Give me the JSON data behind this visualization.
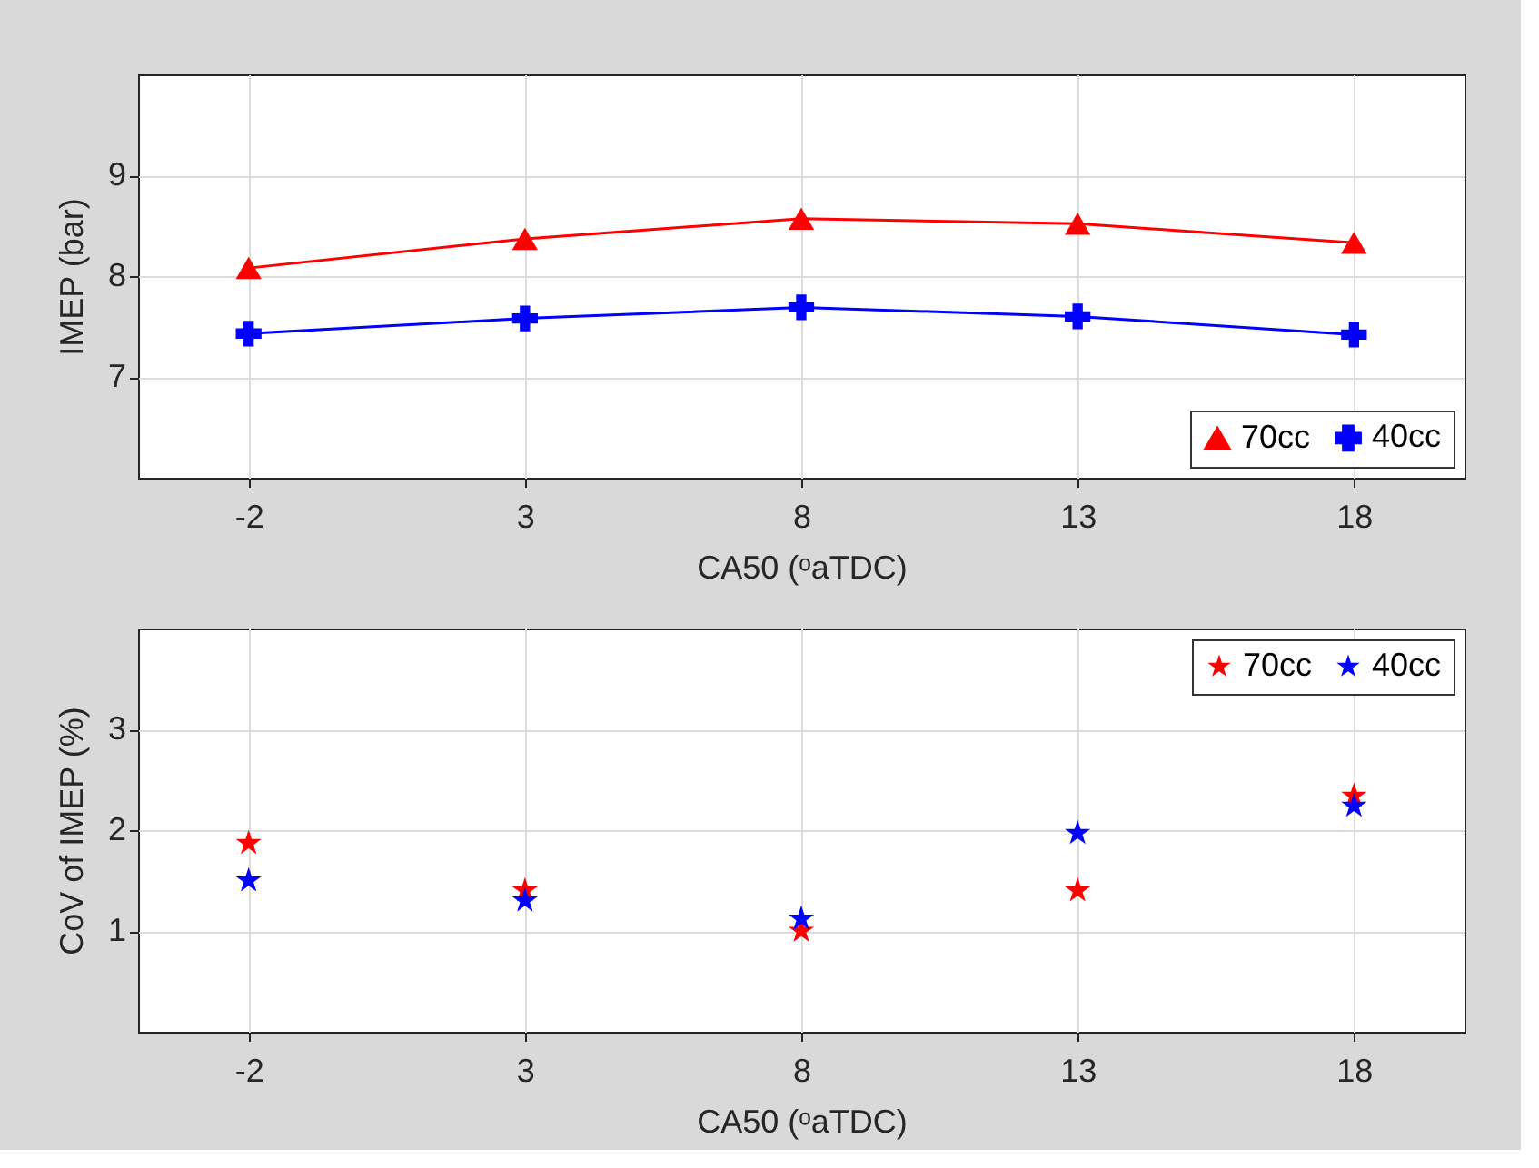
{
  "chart_data": [
    {
      "type": "line",
      "xlabel": "CA50 (ᵒaTDC)",
      "ylabel": "IMEP (bar)",
      "x": [
        -2,
        3,
        8,
        13,
        18
      ],
      "xlim": [
        -4,
        20
      ],
      "xticks": [
        -2,
        3,
        8,
        13,
        18
      ],
      "ylim": [
        6,
        10
      ],
      "yticks": [
        7,
        8,
        9
      ],
      "grid": true,
      "legend": "bottom right",
      "line_style": "solid",
      "series": [
        {
          "name": "70cc",
          "color": "#ff0000",
          "marker": "triangle",
          "values": [
            8.08,
            8.37,
            8.57,
            8.52,
            8.33
          ]
        },
        {
          "name": "40cc",
          "color": "#0000ff",
          "marker": "cross",
          "values": [
            7.43,
            7.58,
            7.69,
            7.6,
            7.42
          ]
        }
      ]
    },
    {
      "type": "scatter",
      "xlabel": "CA50 (ᵒaTDC)",
      "ylabel": "CoV of IMEP (%)",
      "x": [
        -2,
        3,
        8,
        13,
        18
      ],
      "xlim": [
        -4,
        20
      ],
      "xticks": [
        -2,
        3,
        8,
        13,
        18
      ],
      "ylim": [
        0,
        4
      ],
      "yticks": [
        1,
        2,
        3
      ],
      "grid": true,
      "legend": "top right",
      "marker": "star",
      "series": [
        {
          "name": "70cc",
          "color": "#ff0000",
          "values": [
            1.87,
            1.4,
            1.0,
            1.4,
            2.34
          ]
        },
        {
          "name": "40cc",
          "color": "#0000ff",
          "values": [
            1.5,
            1.3,
            1.12,
            1.97,
            2.24
          ]
        }
      ]
    }
  ]
}
